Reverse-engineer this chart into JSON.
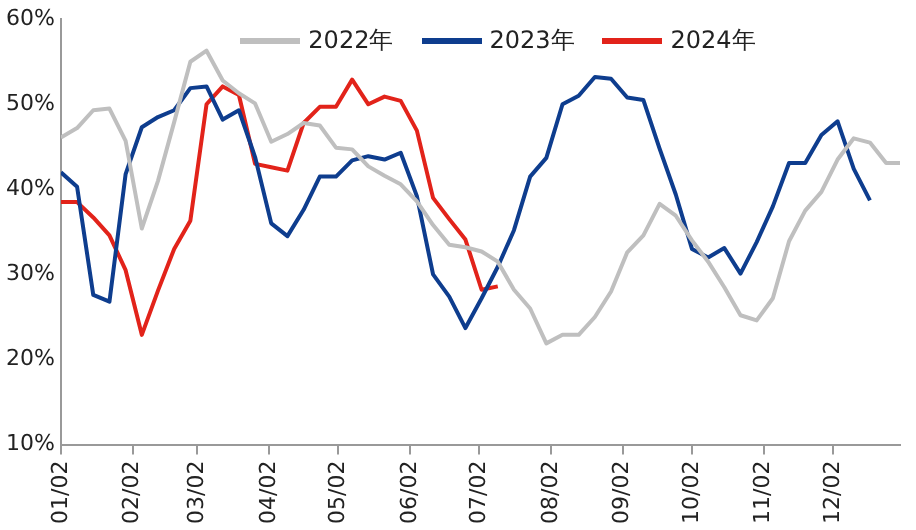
{
  "chart_data": {
    "type": "line",
    "x": [
      "--01-02",
      "--01-09",
      "--01-16",
      "--01-23",
      "--01-30",
      "--02-06",
      "--02-13",
      "--02-20",
      "--02-27",
      "--03-06",
      "--03-13",
      "--03-20",
      "--03-27",
      "--04-03",
      "--04-10",
      "--04-17",
      "--04-24",
      "--05-01",
      "--05-08",
      "--05-15",
      "--05-22",
      "--05-29",
      "--06-05",
      "--06-12",
      "--06-19",
      "--06-26",
      "--07-03",
      "--07-10",
      "--07-17",
      "--07-24",
      "--07-31",
      "--08-07",
      "--08-14",
      "--08-21",
      "--08-28",
      "--09-04",
      "--09-11",
      "--09-18",
      "--09-25",
      "--10-02",
      "--10-09",
      "--10-16",
      "--10-23",
      "--10-30",
      "--11-06",
      "--11-13",
      "--11-20",
      "--11-27",
      "--12-04",
      "--12-11",
      "--12-18",
      "--12-25",
      "--12-31"
    ],
    "series": [
      {
        "name": "2022年",
        "color": "#bfbfbf",
        "values": [
          46.1,
          47.2,
          49.3,
          49.5,
          45.7,
          35.4,
          41.0,
          47.9,
          55.0,
          56.3,
          52.8,
          51.3,
          50.1,
          45.6,
          46.5,
          47.8,
          47.5,
          44.9,
          44.7,
          42.7,
          41.6,
          40.6,
          38.6,
          35.8,
          33.5,
          33.2,
          32.7,
          31.5,
          28.2,
          26.0,
          21.9,
          22.9,
          22.9,
          25.0,
          28.0,
          32.6,
          34.6,
          38.3,
          36.9,
          34.0,
          31.5,
          28.5,
          25.2,
          24.6,
          27.2,
          33.9,
          37.5,
          39.7,
          43.5,
          46.0,
          45.5,
          43.1,
          43.1
        ]
      },
      {
        "name": "2023年",
        "color": "#0e3d8e",
        "values": [
          42.0,
          40.3,
          27.6,
          26.8,
          41.8,
          47.3,
          48.5,
          49.3,
          51.9,
          52.1,
          48.2,
          49.3,
          43.8,
          36.0,
          34.5,
          37.6,
          41.5,
          41.5,
          43.4,
          43.9,
          43.5,
          44.3,
          39.2,
          30.0,
          27.4,
          23.7,
          27.2,
          30.9,
          35.2,
          41.5,
          43.7,
          50.0,
          51.0,
          53.2,
          53.0,
          50.8,
          50.5,
          44.8,
          39.4,
          33.0,
          32.0,
          33.1,
          30.1,
          33.8,
          38.0,
          43.1,
          43.1,
          46.4,
          48.0,
          42.4,
          38.7,
          null,
          null
        ]
      },
      {
        "name": "2024年",
        "color": "#e2231a",
        "values": [
          38.5,
          38.5,
          36.7,
          34.6,
          30.5,
          22.9,
          28.1,
          33.0,
          36.3,
          50.0,
          52.1,
          51.1,
          43.0,
          42.6,
          42.2,
          47.8,
          49.7,
          49.7,
          52.9,
          50.0,
          50.9,
          50.4,
          46.9,
          39.0,
          36.5,
          34.1,
          28.2,
          28.6,
          null,
          null,
          null,
          null,
          null,
          null,
          null,
          null,
          null,
          null,
          null,
          null,
          null,
          null,
          null,
          null,
          null,
          null,
          null,
          null,
          null,
          null,
          null,
          null,
          null
        ]
      }
    ],
    "xlim": [
      "--01-02",
      "--12-31"
    ],
    "xticks": [
      {
        "value": "--01-02",
        "label": "01/02"
      },
      {
        "value": "--02-02",
        "label": "02/02"
      },
      {
        "value": "--03-02",
        "label": "03/02"
      },
      {
        "value": "--04-02",
        "label": "04/02"
      },
      {
        "value": "--05-02",
        "label": "05/02"
      },
      {
        "value": "--06-02",
        "label": "06/02"
      },
      {
        "value": "--07-02",
        "label": "07/02"
      },
      {
        "value": "--08-02",
        "label": "08/02"
      },
      {
        "value": "--09-02",
        "label": "09/02"
      },
      {
        "value": "--10-02",
        "label": "10/02"
      },
      {
        "value": "--11-02",
        "label": "11/02"
      },
      {
        "value": "--12-02",
        "label": "12/02"
      }
    ],
    "ylim": [
      10,
      60
    ],
    "yticks": [
      {
        "value": 10,
        "label": "10%"
      },
      {
        "value": 20,
        "label": "20%"
      },
      {
        "value": 30,
        "label": "30%"
      },
      {
        "value": 40,
        "label": "40%"
      },
      {
        "value": 50,
        "label": "50%"
      },
      {
        "value": 60,
        "label": "60%"
      }
    ],
    "grid": false,
    "legend": "top",
    "marker": "none",
    "line_style": "solid"
  }
}
